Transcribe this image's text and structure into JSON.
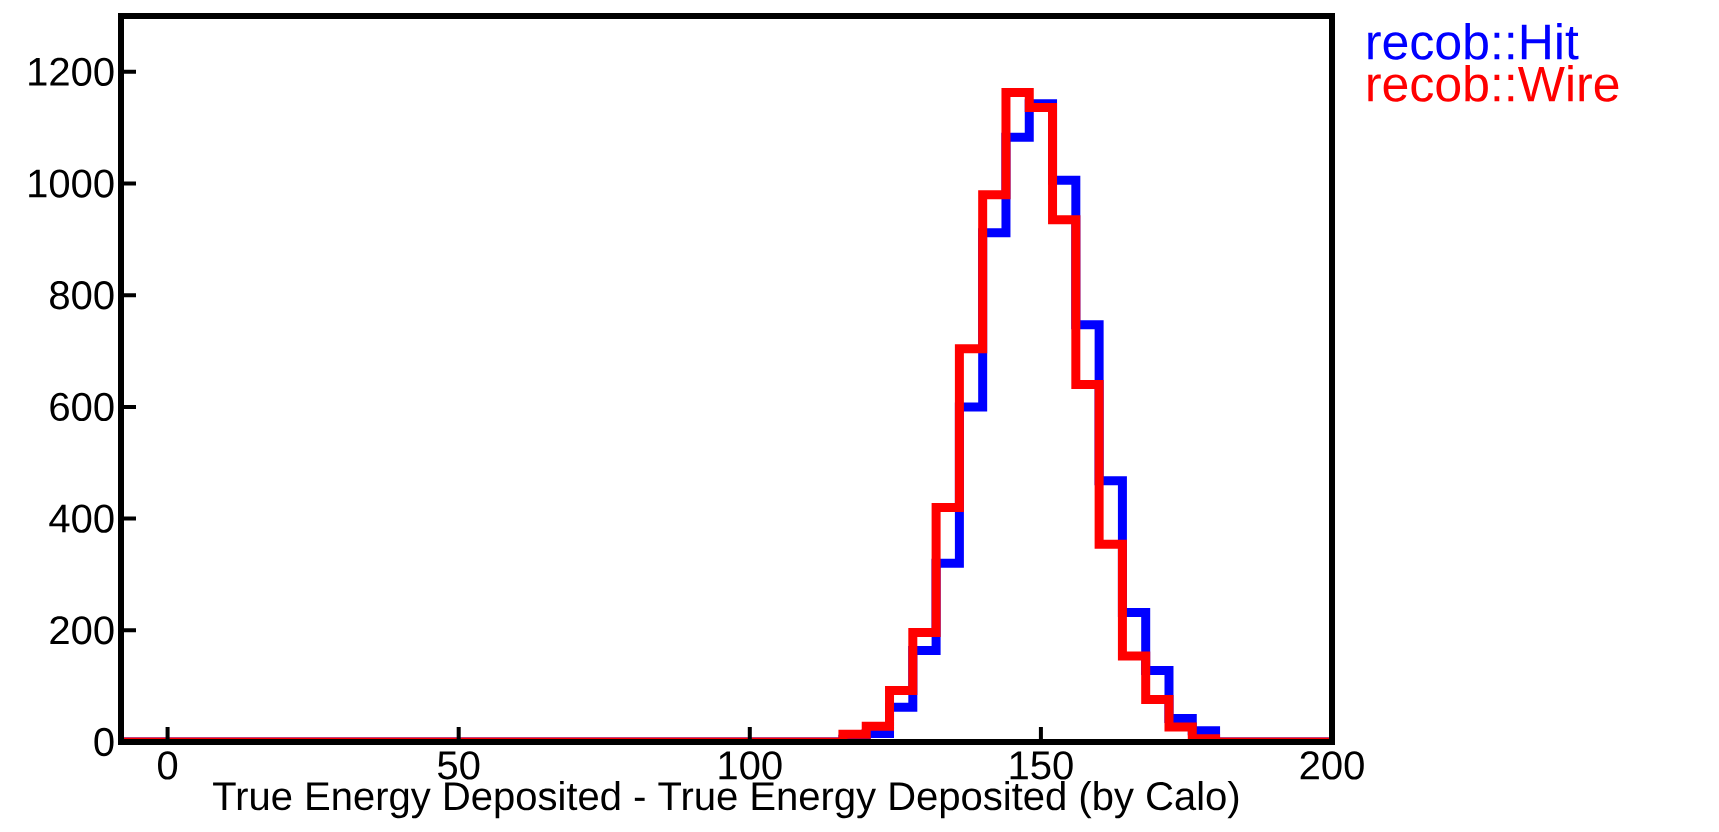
{
  "chart_data": {
    "type": "histogram",
    "xlabel": "True Energy Deposited - True Energy Deposited (by Calo)",
    "bins": [
      -8,
      -4,
      0,
      4,
      8,
      12,
      16,
      20,
      24,
      28,
      32,
      36,
      40,
      44,
      48,
      52,
      56,
      60,
      64,
      68,
      72,
      76,
      80,
      84,
      88,
      92,
      96,
      100,
      104,
      108,
      112,
      116,
      120,
      124,
      128,
      132,
      136,
      140,
      144,
      148,
      152,
      156,
      160,
      164,
      168,
      172,
      176,
      180,
      184,
      188,
      192,
      196,
      200
    ],
    "series": [
      {
        "name": "recob::Hit",
        "color": "#0000ff",
        "values": [
          0,
          0,
          0,
          0,
          0,
          0,
          0,
          0,
          0,
          0,
          0,
          0,
          0,
          0,
          0,
          0,
          0,
          0,
          0,
          0,
          0,
          0,
          0,
          0,
          0,
          0,
          0,
          0,
          0,
          0,
          0,
          5,
          15,
          62,
          164,
          320,
          600,
          912,
          1083,
          1143,
          1006,
          747,
          468,
          232,
          128,
          42,
          20,
          0,
          0,
          0,
          0,
          0
        ]
      },
      {
        "name": "recob::Wire",
        "color": "#ff0000",
        "values": [
          0,
          0,
          0,
          0,
          0,
          0,
          0,
          0,
          0,
          0,
          0,
          0,
          0,
          0,
          0,
          0,
          0,
          0,
          0,
          0,
          0,
          0,
          0,
          0,
          0,
          0,
          0,
          0,
          0,
          0,
          0,
          14,
          28,
          92,
          196,
          420,
          704,
          980,
          1163,
          1136,
          935,
          640,
          354,
          154,
          76,
          27,
          6,
          0,
          0,
          0,
          0,
          0
        ]
      }
    ],
    "xlim": [
      -8,
      200
    ],
    "ylim": [
      0,
      1300
    ],
    "xticks": [
      0,
      50,
      100,
      150,
      200
    ],
    "yticks": [
      0,
      200,
      400,
      600,
      800,
      1000,
      1200
    ],
    "legend": "top right",
    "grid": false
  }
}
